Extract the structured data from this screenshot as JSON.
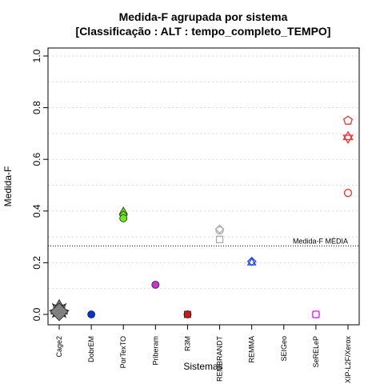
{
  "chart_data": {
    "type": "scatter",
    "title": "Medida-F agrupada por sistema",
    "subtitle": "[Classificação : ALT : tempo_completo_TEMPO]",
    "xlabel": "Sistemas",
    "ylabel": "Medida-F",
    "ylim": [
      0,
      1
    ],
    "yticks": [
      "0.0",
      "0.2",
      "0.4",
      "0.6",
      "0.8",
      "1.0"
    ],
    "grid": "horizontal-dotted",
    "categories": [
      "Cage2",
      "DobrEM",
      "PorTexTO",
      "Priberam",
      "R3M",
      "REMBRANDT",
      "REMMA",
      "SEIGeo",
      "SeRELeP",
      "XIP-L2F/Xerox"
    ],
    "reference_line": {
      "label": "Medida-F MÉDIA",
      "value": 0.265
    },
    "series": [
      {
        "category": "Cage2",
        "color": "#808080",
        "points": [
          {
            "y": 0.015,
            "marker": "star-filled"
          },
          {
            "y": 0.015,
            "marker": "square-filled"
          },
          {
            "y": 0.02,
            "marker": "triangle-filled"
          },
          {
            "y": 0.01,
            "marker": "diamond-filled"
          }
        ]
      },
      {
        "category": "DobrEM",
        "color": "#0033dd",
        "points": [
          {
            "y": 0.0,
            "marker": "circle-filled"
          }
        ]
      },
      {
        "category": "PorTexTO",
        "color": "#66ee11",
        "points": [
          {
            "y": 0.398,
            "marker": "triangle-filled"
          },
          {
            "y": 0.385,
            "marker": "diamond-filled"
          },
          {
            "y": 0.372,
            "marker": "circle-filled"
          }
        ]
      },
      {
        "category": "Priberam",
        "color": "#cc33dd",
        "points": [
          {
            "y": 0.115,
            "marker": "circle-filled"
          }
        ]
      },
      {
        "category": "R3M",
        "color": "#dd1111",
        "points": [
          {
            "y": 0.0,
            "marker": "circle-filled"
          },
          {
            "y": 0.0,
            "marker": "square-filled"
          }
        ]
      },
      {
        "category": "REMBRANDT",
        "color": "#aaaaaa",
        "points": [
          {
            "y": 0.33,
            "marker": "diamond-open"
          },
          {
            "y": 0.325,
            "marker": "circle-open"
          },
          {
            "y": 0.29,
            "marker": "square-open"
          }
        ]
      },
      {
        "category": "REMMA",
        "color": "#2244ee",
        "points": [
          {
            "y": 0.205,
            "marker": "diamond-open"
          },
          {
            "y": 0.2,
            "marker": "triangle-open"
          }
        ]
      },
      {
        "category": "SEIGeo",
        "color": "#000000",
        "points": []
      },
      {
        "category": "SeRELeP",
        "color": "#dd44ee",
        "points": [
          {
            "y": 0.0,
            "marker": "square-open"
          },
          {
            "y": 0.0,
            "marker": "circle-open"
          }
        ]
      },
      {
        "category": "XIP-L2F/Xerox",
        "color": "#ee3333",
        "points": [
          {
            "y": 0.75,
            "marker": "pentagon-open"
          },
          {
            "y": 0.685,
            "marker": "star6-open"
          },
          {
            "y": 0.47,
            "marker": "circle-open"
          }
        ]
      }
    ]
  }
}
